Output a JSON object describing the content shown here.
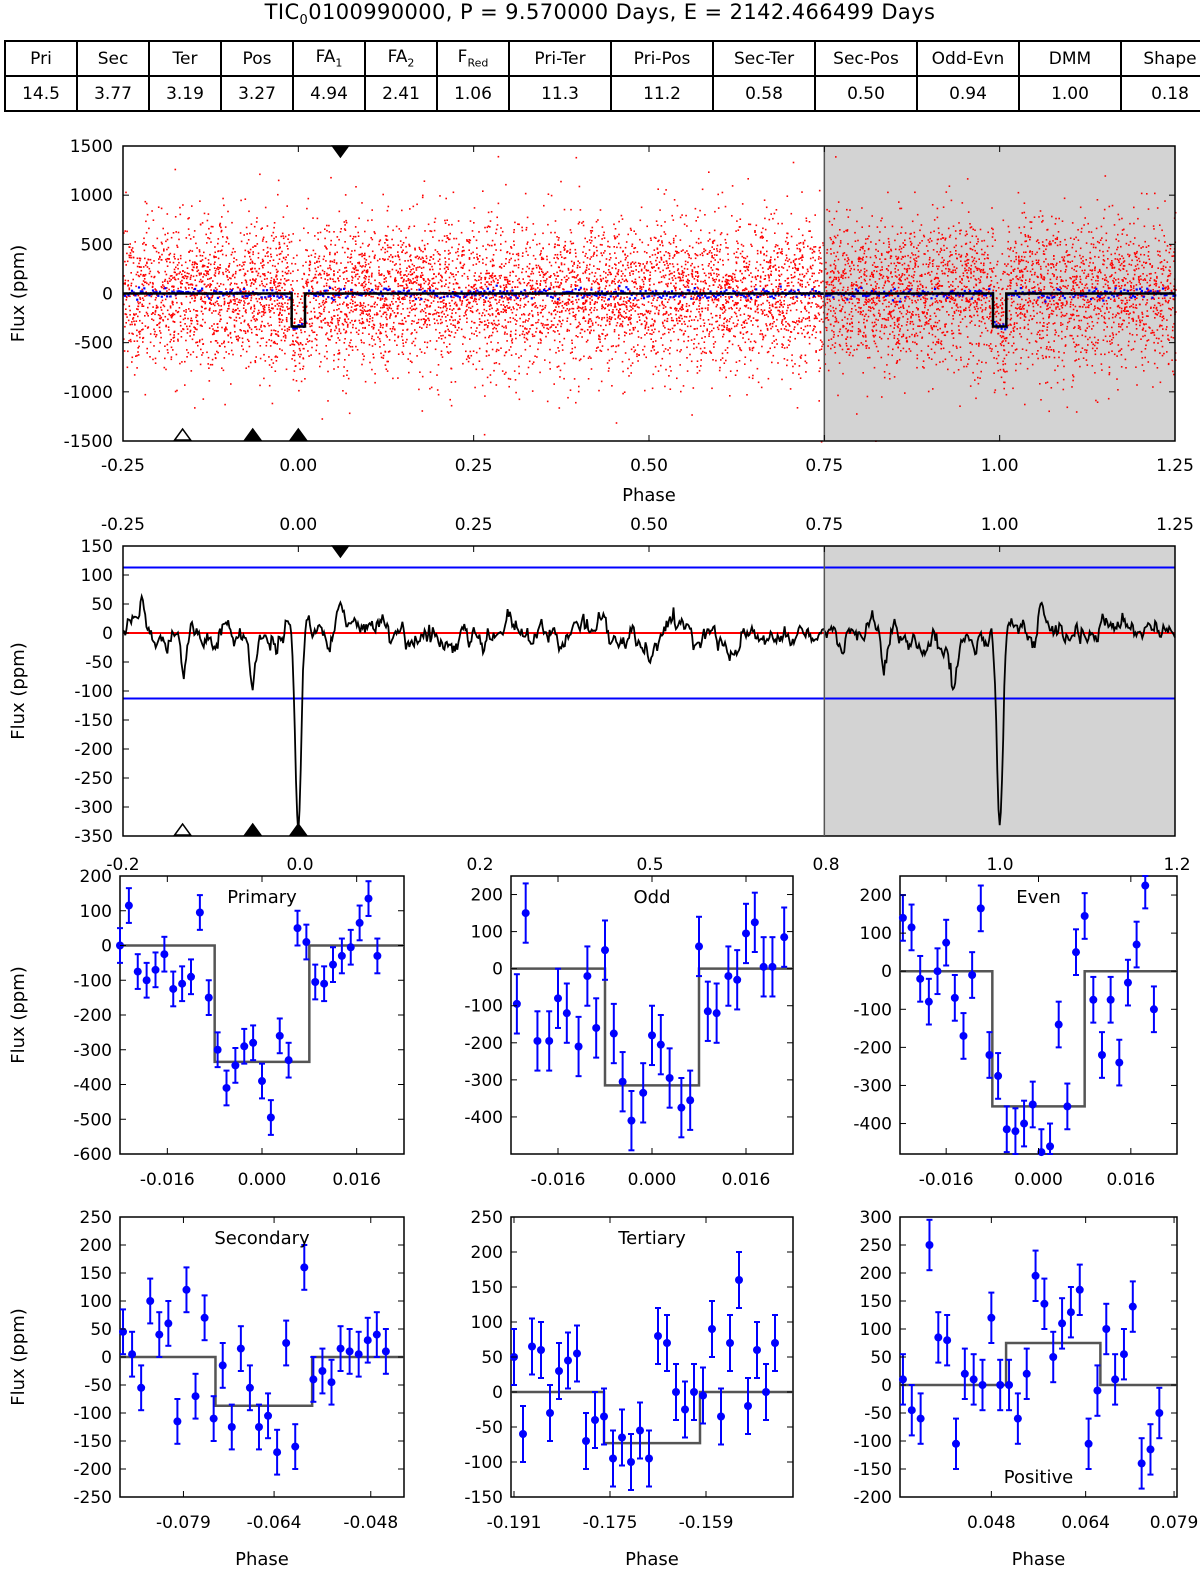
{
  "title": {
    "pre": "TIC",
    "sub": "0",
    "post": "0100990000, P = 9.570000 Days, E = 2142.466499 Days"
  },
  "stats_table": {
    "headers": [
      {
        "main": "Pri",
        "sub": ""
      },
      {
        "main": "Sec",
        "sub": ""
      },
      {
        "main": "Ter",
        "sub": ""
      },
      {
        "main": "Pos",
        "sub": ""
      },
      {
        "main": "FA",
        "sub": "1"
      },
      {
        "main": "FA",
        "sub": "2"
      },
      {
        "main": "F",
        "sub": "Red"
      },
      {
        "main": "Pri-Ter",
        "sub": ""
      },
      {
        "main": "Pri-Pos",
        "sub": ""
      },
      {
        "main": "Sec-Ter",
        "sub": ""
      },
      {
        "main": "Sec-Pos",
        "sub": ""
      },
      {
        "main": "Odd-Evn",
        "sub": ""
      },
      {
        "main": "DMM",
        "sub": ""
      },
      {
        "main": "Shape",
        "sub": ""
      }
    ],
    "values": [
      "14.5",
      "3.77",
      "3.19",
      "3.27",
      "4.94",
      "2.41",
      "1.06",
      "11.3",
      "11.2",
      "0.58",
      "0.50",
      "0.94",
      "1.00",
      "0.18"
    ]
  },
  "colors": {
    "data_points": "#ff0000",
    "binned_points": "#0000ff",
    "model": "#000000",
    "panel_model": "#555555",
    "shade": "#d3d3d3",
    "zero_line": "#ff0000",
    "threshold_line": "#0000ff"
  },
  "chart_data": [
    {
      "id": "full_phase",
      "type": "scatter",
      "xlabel": "Phase",
      "ylabel": "Flux (ppm)",
      "xlim": [
        -0.25,
        1.25
      ],
      "ylim": [
        -1500,
        1500
      ],
      "xticks": [
        "-0.25",
        "0.00",
        "0.25",
        "0.50",
        "0.75",
        "1.00",
        "1.25"
      ],
      "yticks": [
        "1500",
        "1000",
        "500",
        "0",
        "-500",
        "-1000",
        "-1500"
      ],
      "shaded_from": 0.75,
      "noise_sigma_ppm": 370,
      "transit": {
        "center": [
          0.0,
          1.0
        ],
        "half_width": 0.0095,
        "depth": -335
      },
      "markers_top_filled": [
        0.06
      ],
      "markers_bottom_filled": [
        -0.065,
        0.0
      ],
      "markers_bottom_open": [
        -0.165
      ]
    },
    {
      "id": "convolved",
      "type": "line",
      "ylabel": "Flux (ppm)",
      "xlim": [
        -0.25,
        1.25
      ],
      "ylim": [
        -350,
        150
      ],
      "xticks": [
        "-0.25",
        "0.00",
        "0.25",
        "0.50",
        "0.75",
        "1.00",
        "1.25"
      ],
      "yticks": [
        "150",
        "100",
        "50",
        "0",
        "-50",
        "-100",
        "-150",
        "-200",
        "-250",
        "-300",
        "-350"
      ],
      "threshold": 113,
      "shaded_from": 0.75,
      "dips": [
        {
          "phase": 0.0,
          "depth": -340,
          "width": 0.006
        },
        {
          "phase": -0.065,
          "depth": -80,
          "width": 0.006
        },
        {
          "phase": -0.165,
          "depth": -70,
          "width": 0.005
        },
        {
          "phase": 0.06,
          "depth": 70,
          "width": 0.007
        }
      ],
      "markers_top_filled": [
        0.06
      ],
      "markers_bottom_filled": [
        -0.065,
        0.0
      ],
      "markers_bottom_open": [
        -0.165
      ]
    }
  ],
  "shared_axis": {
    "ticks": [
      "-0.2",
      "0.0",
      "0.2",
      "0.5",
      "0.8",
      "1.0",
      "1.2"
    ]
  },
  "panels": [
    {
      "label": "Primary",
      "ylim": [
        -600,
        200
      ],
      "yticks": [
        200,
        100,
        0,
        -100,
        -200,
        -300,
        -400,
        -500,
        -600
      ],
      "xticks": [
        "-0.016",
        "0.000",
        "0.016"
      ],
      "xtick_vals": [
        -0.016,
        0.0,
        0.016
      ],
      "xlim": [
        -0.024,
        0.024
      ],
      "model": {
        "base": 0,
        "level": -335,
        "start": -0.008,
        "end": 0.008
      },
      "points": [
        [
          -0.024,
          0
        ],
        [
          -0.0225,
          115
        ],
        [
          -0.021,
          -75
        ],
        [
          -0.0195,
          -100
        ],
        [
          -0.018,
          -70
        ],
        [
          -0.0165,
          -25
        ],
        [
          -0.015,
          -125
        ],
        [
          -0.0135,
          -110
        ],
        [
          -0.012,
          -90
        ],
        [
          -0.0105,
          95
        ],
        [
          -0.009,
          -150
        ],
        [
          -0.0075,
          -300
        ],
        [
          -0.006,
          -410
        ],
        [
          -0.0045,
          -345
        ],
        [
          -0.003,
          -290
        ],
        [
          -0.0015,
          -280
        ],
        [
          0.0,
          -390
        ],
        [
          0.0015,
          -495
        ],
        [
          0.003,
          -260
        ],
        [
          0.0045,
          -330
        ],
        [
          0.006,
          50
        ],
        [
          0.0075,
          10
        ],
        [
          0.009,
          -105
        ],
        [
          0.0105,
          -110
        ],
        [
          0.012,
          -55
        ],
        [
          0.0135,
          -30
        ],
        [
          0.015,
          -5
        ],
        [
          0.0165,
          65
        ],
        [
          0.018,
          135
        ],
        [
          0.0195,
          -30
        ]
      ],
      "err": 50
    },
    {
      "label": "Odd",
      "ylim": [
        -500,
        250
      ],
      "yticks": [
        200,
        100,
        0,
        -100,
        -200,
        -300,
        -400
      ],
      "ypad_top": 0.12,
      "xticks": [
        "-0.016",
        "0.000",
        "0.016"
      ],
      "xtick_vals": [
        -0.016,
        0.0,
        0.016
      ],
      "xlim": [
        -0.024,
        0.024
      ],
      "model": {
        "base": 0,
        "level": -315,
        "start": -0.008,
        "end": 0.008
      },
      "points": [
        [
          -0.023,
          -95
        ],
        [
          -0.0215,
          150
        ],
        [
          -0.0195,
          -195
        ],
        [
          -0.0175,
          -195
        ],
        [
          -0.016,
          -80
        ],
        [
          -0.0145,
          -120
        ],
        [
          -0.0125,
          -210
        ],
        [
          -0.011,
          -20
        ],
        [
          -0.0095,
          -160
        ],
        [
          -0.008,
          50
        ],
        [
          -0.0065,
          -175
        ],
        [
          -0.005,
          -305
        ],
        [
          -0.0035,
          -410
        ],
        [
          -0.0015,
          -335
        ],
        [
          0.0,
          -180
        ],
        [
          0.0015,
          -205
        ],
        [
          0.003,
          -295
        ],
        [
          0.005,
          -375
        ],
        [
          0.0065,
          -355
        ],
        [
          0.008,
          60
        ],
        [
          0.0095,
          -115
        ],
        [
          0.011,
          -120
        ],
        [
          0.013,
          -20
        ],
        [
          0.0145,
          -30
        ],
        [
          0.016,
          95
        ],
        [
          0.0175,
          125
        ],
        [
          0.019,
          5
        ],
        [
          0.0205,
          5
        ],
        [
          0.0225,
          85
        ]
      ],
      "err": 80
    },
    {
      "label": "Even",
      "ylim": [
        -480,
        250
      ],
      "yticks": [
        200,
        100,
        0,
        -100,
        -200,
        -300,
        -400
      ],
      "xticks": [
        "-0.016",
        "0.000",
        "0.016"
      ],
      "xtick_vals": [
        -0.016,
        0.0,
        0.016
      ],
      "xlim": [
        -0.024,
        0.024
      ],
      "model": {
        "base": 0,
        "level": -355,
        "start": -0.008,
        "end": 0.008
      },
      "points": [
        [
          -0.0235,
          140
        ],
        [
          -0.022,
          115
        ],
        [
          -0.0205,
          -20
        ],
        [
          -0.019,
          -80
        ],
        [
          -0.0175,
          0
        ],
        [
          -0.016,
          75
        ],
        [
          -0.0145,
          -70
        ],
        [
          -0.013,
          -170
        ],
        [
          -0.0115,
          -10
        ],
        [
          -0.01,
          165
        ],
        [
          -0.0085,
          -220
        ],
        [
          -0.007,
          -275
        ],
        [
          -0.0055,
          -415
        ],
        [
          -0.004,
          -420
        ],
        [
          -0.0025,
          -400
        ],
        [
          -0.001,
          -350
        ],
        [
          0.0005,
          -475
        ],
        [
          0.002,
          -460
        ],
        [
          0.0035,
          -140
        ],
        [
          0.005,
          -355
        ],
        [
          0.0065,
          50
        ],
        [
          0.008,
          145
        ],
        [
          0.0095,
          -75
        ],
        [
          0.011,
          -220
        ],
        [
          0.0125,
          -75
        ],
        [
          0.014,
          -240
        ],
        [
          0.0155,
          -30
        ],
        [
          0.017,
          70
        ],
        [
          0.0185,
          225
        ],
        [
          0.02,
          -100
        ]
      ],
      "err": 60
    },
    {
      "label": "Secondary",
      "ylim": [
        -250,
        250
      ],
      "yticks": [
        250,
        200,
        150,
        100,
        50,
        0,
        -50,
        -100,
        -150,
        -200,
        -250
      ],
      "xticks": [
        "-0.079",
        "-0.064",
        "-0.048"
      ],
      "xtick_vals": [
        -0.079,
        -0.064,
        -0.048
      ],
      "xlim": [
        -0.0895,
        -0.0425
      ],
      "model": {
        "base": 0,
        "level": -87,
        "start": -0.0737,
        "end": -0.0577
      },
      "points": [
        [
          -0.089,
          45
        ],
        [
          -0.0875,
          5
        ],
        [
          -0.086,
          -55
        ],
        [
          -0.0845,
          100
        ],
        [
          -0.083,
          40
        ],
        [
          -0.0815,
          60
        ],
        [
          -0.08,
          -115
        ],
        [
          -0.0785,
          120
        ],
        [
          -0.077,
          -70
        ],
        [
          -0.0755,
          70
        ],
        [
          -0.074,
          -110
        ],
        [
          -0.0725,
          -15
        ],
        [
          -0.071,
          -125
        ],
        [
          -0.0695,
          15
        ],
        [
          -0.068,
          -55
        ],
        [
          -0.0665,
          -125
        ],
        [
          -0.065,
          -105
        ],
        [
          -0.0635,
          -170
        ],
        [
          -0.062,
          25
        ],
        [
          -0.0605,
          -160
        ],
        [
          -0.059,
          160
        ],
        [
          -0.0575,
          -40
        ],
        [
          -0.056,
          -25
        ],
        [
          -0.0545,
          -45
        ],
        [
          -0.053,
          15
        ],
        [
          -0.0515,
          10
        ],
        [
          -0.05,
          5
        ],
        [
          -0.0485,
          30
        ],
        [
          -0.047,
          40
        ],
        [
          -0.0455,
          10
        ]
      ],
      "err": 40
    },
    {
      "label": "Tertiary",
      "ylim": [
        -150,
        250
      ],
      "yticks": [
        250,
        200,
        150,
        100,
        50,
        0,
        -50,
        -100,
        -150
      ],
      "xticks": [
        "-0.191",
        "-0.175",
        "-0.159"
      ],
      "xtick_vals": [
        -0.191,
        -0.175,
        -0.159
      ],
      "xlim": [
        -0.1915,
        -0.1445
      ],
      "model": {
        "base": 0,
        "level": -73,
        "start": -0.176,
        "end": -0.16
      },
      "points": [
        [
          -0.191,
          50
        ],
        [
          -0.1895,
          -60
        ],
        [
          -0.188,
          65
        ],
        [
          -0.1865,
          60
        ],
        [
          -0.185,
          -30
        ],
        [
          -0.1835,
          30
        ],
        [
          -0.182,
          45
        ],
        [
          -0.1805,
          55
        ],
        [
          -0.179,
          -70
        ],
        [
          -0.1775,
          -40
        ],
        [
          -0.176,
          -35
        ],
        [
          -0.1745,
          -95
        ],
        [
          -0.173,
          -65
        ],
        [
          -0.1715,
          -100
        ],
        [
          -0.17,
          -55
        ],
        [
          -0.1685,
          -95
        ],
        [
          -0.167,
          80
        ],
        [
          -0.1655,
          70
        ],
        [
          -0.164,
          0
        ],
        [
          -0.1625,
          -25
        ],
        [
          -0.161,
          0
        ],
        [
          -0.1595,
          -5
        ],
        [
          -0.158,
          90
        ],
        [
          -0.1565,
          -35
        ],
        [
          -0.155,
          70
        ],
        [
          -0.1535,
          160
        ],
        [
          -0.152,
          -20
        ],
        [
          -0.1505,
          60
        ],
        [
          -0.149,
          0
        ],
        [
          -0.1475,
          70
        ]
      ],
      "err": 40
    },
    {
      "label": "Positive",
      "ylim": [
        -200,
        300
      ],
      "yticks": [
        300,
        250,
        200,
        150,
        100,
        50,
        0,
        -50,
        -100,
        -150,
        -200
      ],
      "xticks": [
        "0.048",
        "0.064",
        "0.079"
      ],
      "xtick_vals": [
        0.048,
        0.064,
        0.079
      ],
      "xlim": [
        0.0325,
        0.0795
      ],
      "model": {
        "base": 0,
        "level": 75,
        "start": 0.0505,
        "end": 0.0665
      },
      "points": [
        [
          0.033,
          10
        ],
        [
          0.0345,
          -45
        ],
        [
          0.036,
          -60
        ],
        [
          0.0375,
          250
        ],
        [
          0.039,
          85
        ],
        [
          0.0405,
          80
        ],
        [
          0.042,
          -105
        ],
        [
          0.0435,
          20
        ],
        [
          0.045,
          10
        ],
        [
          0.0465,
          0
        ],
        [
          0.048,
          120
        ],
        [
          0.0495,
          0
        ],
        [
          0.051,
          0
        ],
        [
          0.0525,
          -60
        ],
        [
          0.054,
          20
        ],
        [
          0.0555,
          195
        ],
        [
          0.057,
          145
        ],
        [
          0.0585,
          50
        ],
        [
          0.06,
          110
        ],
        [
          0.0615,
          130
        ],
        [
          0.063,
          170
        ],
        [
          0.0645,
          -105
        ],
        [
          0.066,
          -10
        ],
        [
          0.0675,
          100
        ],
        [
          0.069,
          10
        ],
        [
          0.0705,
          55
        ],
        [
          0.072,
          140
        ],
        [
          0.0735,
          -140
        ],
        [
          0.075,
          -115
        ],
        [
          0.0765,
          -50
        ]
      ],
      "err": 45
    }
  ]
}
